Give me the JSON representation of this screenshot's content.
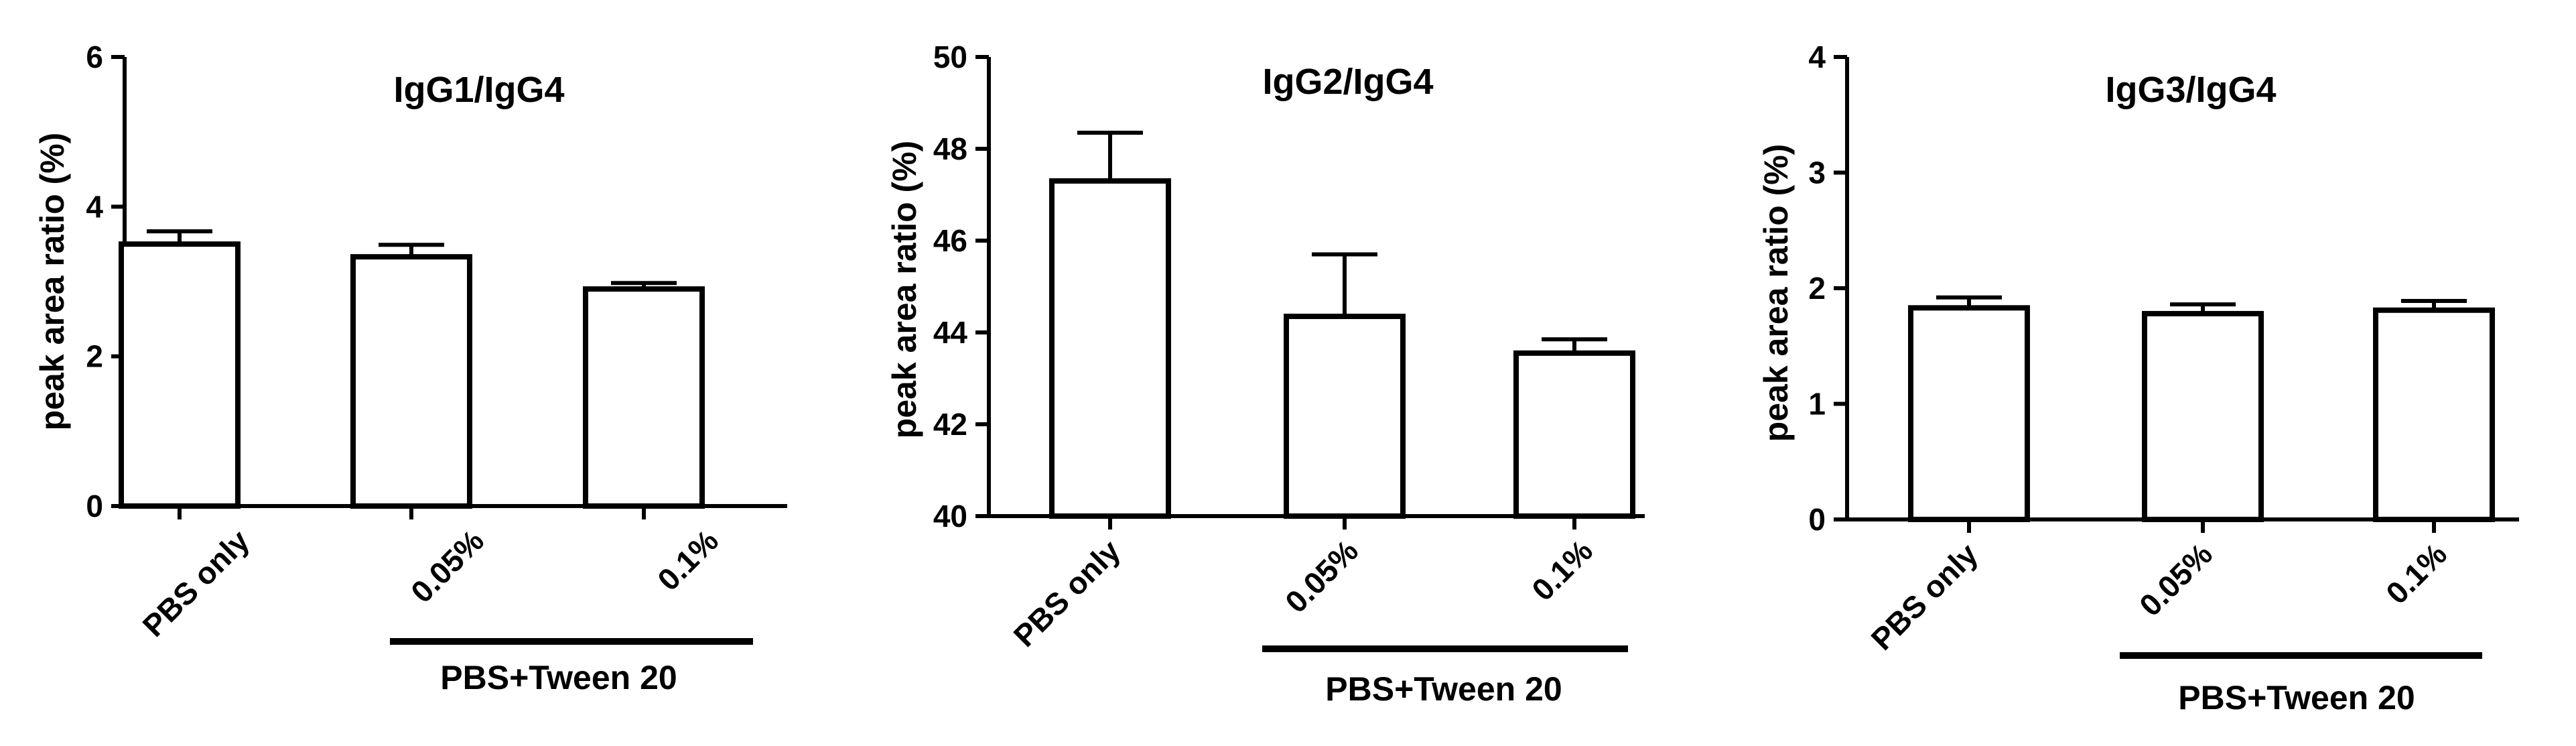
{
  "chart_data": [
    {
      "type": "bar",
      "title": "IgG1/IgG4",
      "ylabel": "peak area ratio (%)",
      "ylim": [
        0,
        6
      ],
      "yticks": [
        0,
        2,
        4,
        6
      ],
      "categories": [
        "PBS only",
        "0.05%",
        "0.1%"
      ],
      "values": [
        3.5,
        3.33,
        2.9
      ],
      "errors": [
        0.17,
        0.16,
        0.08
      ],
      "group_label": "PBS+Tween 20",
      "fill": "#ffffff",
      "stroke": "#000000"
    },
    {
      "type": "bar",
      "title": "IgG2/IgG4",
      "ylabel": "peak area ratio (%)",
      "ylim": [
        40,
        50
      ],
      "yticks": [
        40,
        42,
        44,
        46,
        48,
        50
      ],
      "categories": [
        "PBS only",
        "0.05%",
        "0.1%"
      ],
      "values": [
        47.3,
        44.35,
        43.55
      ],
      "errors": [
        1.05,
        1.35,
        0.3
      ],
      "group_label": "PBS+Tween 20",
      "fill": "#ffffff",
      "stroke": "#000000"
    },
    {
      "type": "bar",
      "title": "IgG3/IgG4",
      "ylabel": "peak area ratio (%)",
      "ylim": [
        0,
        4
      ],
      "yticks": [
        0,
        1,
        2,
        3,
        4
      ],
      "categories": [
        "PBS only",
        "0.05%",
        "0.1%"
      ],
      "values": [
        1.83,
        1.78,
        1.81
      ],
      "errors": [
        0.09,
        0.08,
        0.08
      ],
      "group_label": "PBS+Tween 20",
      "fill": "#ffffff",
      "stroke": "#000000"
    }
  ]
}
